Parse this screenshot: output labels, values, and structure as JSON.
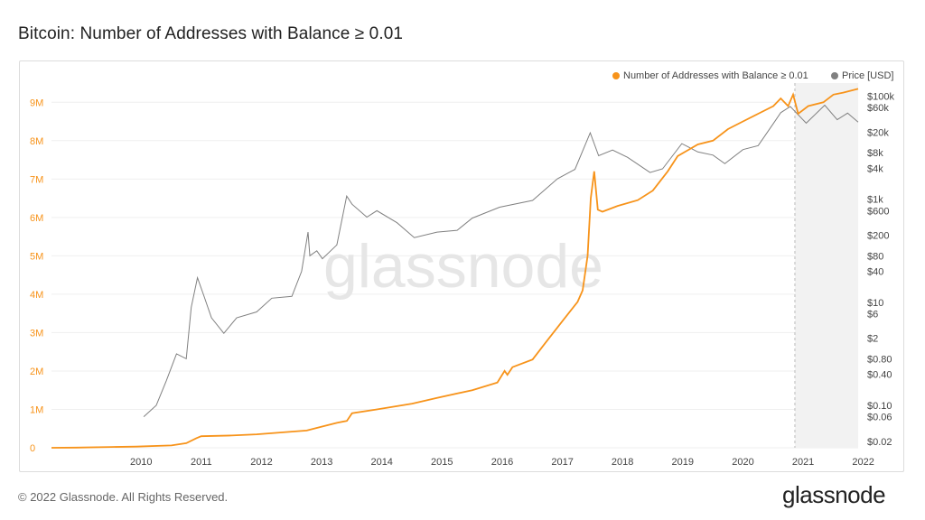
{
  "page": {
    "title": "Bitcoin: Number of Addresses with Balance ≥ 0.01",
    "footer": "© 2022 Glassnode. All Rights Reserved.",
    "brand": "glassnode",
    "watermark": "glassnode"
  },
  "chart_data": {
    "type": "line",
    "title": "Bitcoin: Number of Addresses with Balance ≥ 0.01",
    "x_ticks": [
      "2010",
      "2011",
      "2012",
      "2013",
      "2014",
      "2015",
      "2016",
      "2017",
      "2018",
      "2019",
      "2020",
      "2021",
      "2022"
    ],
    "xlim": [
      "2009-01-03",
      "2022-05-31"
    ],
    "y_left": {
      "ticks": [
        0,
        1000000,
        2000000,
        3000000,
        4000000,
        5000000,
        6000000,
        7000000,
        8000000,
        9000000
      ],
      "tick_labels": [
        "0",
        "1M",
        "2M",
        "3M",
        "4M",
        "5M",
        "6M",
        "7M",
        "8M",
        "9M"
      ],
      "ylim": [
        0,
        9500000
      ]
    },
    "y_right": {
      "scale": "log",
      "ylim": [
        0.015,
        180000
      ],
      "tick_values": [
        100000,
        60000,
        20000,
        8000,
        4000,
        1000,
        600,
        200,
        80,
        40,
        10,
        6,
        2,
        0.8,
        0.4,
        0.1,
        0.06,
        0.02
      ],
      "tick_labels": [
        "$100k",
        "$60k",
        "$20k",
        "$8k",
        "$4k",
        "$1k",
        "$600",
        "$200",
        "$80",
        "$40",
        "$10",
        "$6",
        "$2",
        "$0.80",
        "$0.40",
        "$0.10",
        "$0.06",
        "$0.02"
      ]
    },
    "legend": {
      "placement": "top-right"
    },
    "series": [
      {
        "name": "Number of Addresses with Balance ≥ 0.01",
        "color": "#f7931a",
        "axis": "left",
        "x": [
          "2009-01-03",
          "2009-06-01",
          "2010-01-01",
          "2010-06-01",
          "2011-01-01",
          "2011-04-01",
          "2011-06-01",
          "2011-07-01",
          "2012-01-01",
          "2012-06-01",
          "2013-01-01",
          "2013-04-01",
          "2013-07-01",
          "2013-10-01",
          "2013-12-01",
          "2014-01-01",
          "2014-06-01",
          "2015-01-01",
          "2015-06-01",
          "2016-01-01",
          "2016-06-01",
          "2016-07-15",
          "2016-08-01",
          "2016-09-01",
          "2017-01-01",
          "2017-04-01",
          "2017-07-01",
          "2017-10-01",
          "2017-11-01",
          "2017-12-01",
          "2017-12-20",
          "2018-01-10",
          "2018-02-01",
          "2018-03-01",
          "2018-06-01",
          "2018-10-01",
          "2019-01-01",
          "2019-04-01",
          "2019-06-01",
          "2019-10-01",
          "2020-01-01",
          "2020-04-01",
          "2020-07-01",
          "2020-10-01",
          "2021-01-01",
          "2021-02-15",
          "2021-04-01",
          "2021-05-01",
          "2021-06-01",
          "2021-08-01",
          "2021-11-01",
          "2022-01-01",
          "2022-03-01",
          "2022-05-31"
        ],
        "y": [
          0,
          5000,
          20000,
          30000,
          60000,
          120000,
          250000,
          300000,
          320000,
          350000,
          420000,
          450000,
          550000,
          650000,
          700000,
          900000,
          1000000,
          1150000,
          1300000,
          1500000,
          1700000,
          2000000,
          1900000,
          2100000,
          2300000,
          2800000,
          3300000,
          3800000,
          4100000,
          5000000,
          6500000,
          7200000,
          6200000,
          6150000,
          6300000,
          6450000,
          6700000,
          7200000,
          7600000,
          7900000,
          8000000,
          8300000,
          8500000,
          8700000,
          8900000,
          9100000,
          8900000,
          9200000,
          8700000,
          8900000,
          9000000,
          9200000,
          9250000,
          9350000
        ]
      },
      {
        "name": "Price [USD]",
        "color": "#808080",
        "axis": "right",
        "x": [
          "2010-07-17",
          "2010-10-01",
          "2010-12-01",
          "2011-02-01",
          "2011-04-01",
          "2011-05-01",
          "2011-06-08",
          "2011-07-15",
          "2011-09-01",
          "2011-11-15",
          "2012-02-01",
          "2012-06-01",
          "2012-09-01",
          "2013-01-01",
          "2013-03-01",
          "2013-04-09",
          "2013-04-20",
          "2013-06-01",
          "2013-07-05",
          "2013-10-01",
          "2013-11-30",
          "2014-01-01",
          "2014-04-01",
          "2014-06-01",
          "2014-10-01",
          "2015-01-14",
          "2015-06-01",
          "2015-10-01",
          "2016-01-01",
          "2016-06-15",
          "2017-01-01",
          "2017-06-01",
          "2017-09-15",
          "2017-12-17",
          "2018-02-06",
          "2018-05-01",
          "2018-08-01",
          "2018-12-15",
          "2019-03-01",
          "2019-06-26",
          "2019-10-01",
          "2020-01-01",
          "2020-03-13",
          "2020-07-01",
          "2020-10-01",
          "2020-12-31",
          "2021-02-15",
          "2021-04-14",
          "2021-07-20",
          "2021-11-09",
          "2022-01-24",
          "2022-03-28",
          "2022-05-31"
        ],
        "y": [
          0.06,
          0.1,
          0.3,
          1,
          0.8,
          8,
          30,
          14,
          5,
          2.5,
          5,
          6.5,
          12,
          13,
          40,
          230,
          80,
          100,
          70,
          130,
          1150,
          800,
          450,
          600,
          350,
          180,
          230,
          250,
          430,
          700,
          950,
          2500,
          3800,
          19500,
          7000,
          9000,
          6500,
          3300,
          3900,
          12000,
          8300,
          7200,
          4900,
          9200,
          11000,
          29000,
          48000,
          63000,
          30000,
          67000,
          35000,
          47000,
          31500
        ]
      }
    ],
    "annotation": {
      "type": "shaded-region",
      "x_range": [
        "2021-05-12",
        "2022-05-31"
      ]
    }
  }
}
